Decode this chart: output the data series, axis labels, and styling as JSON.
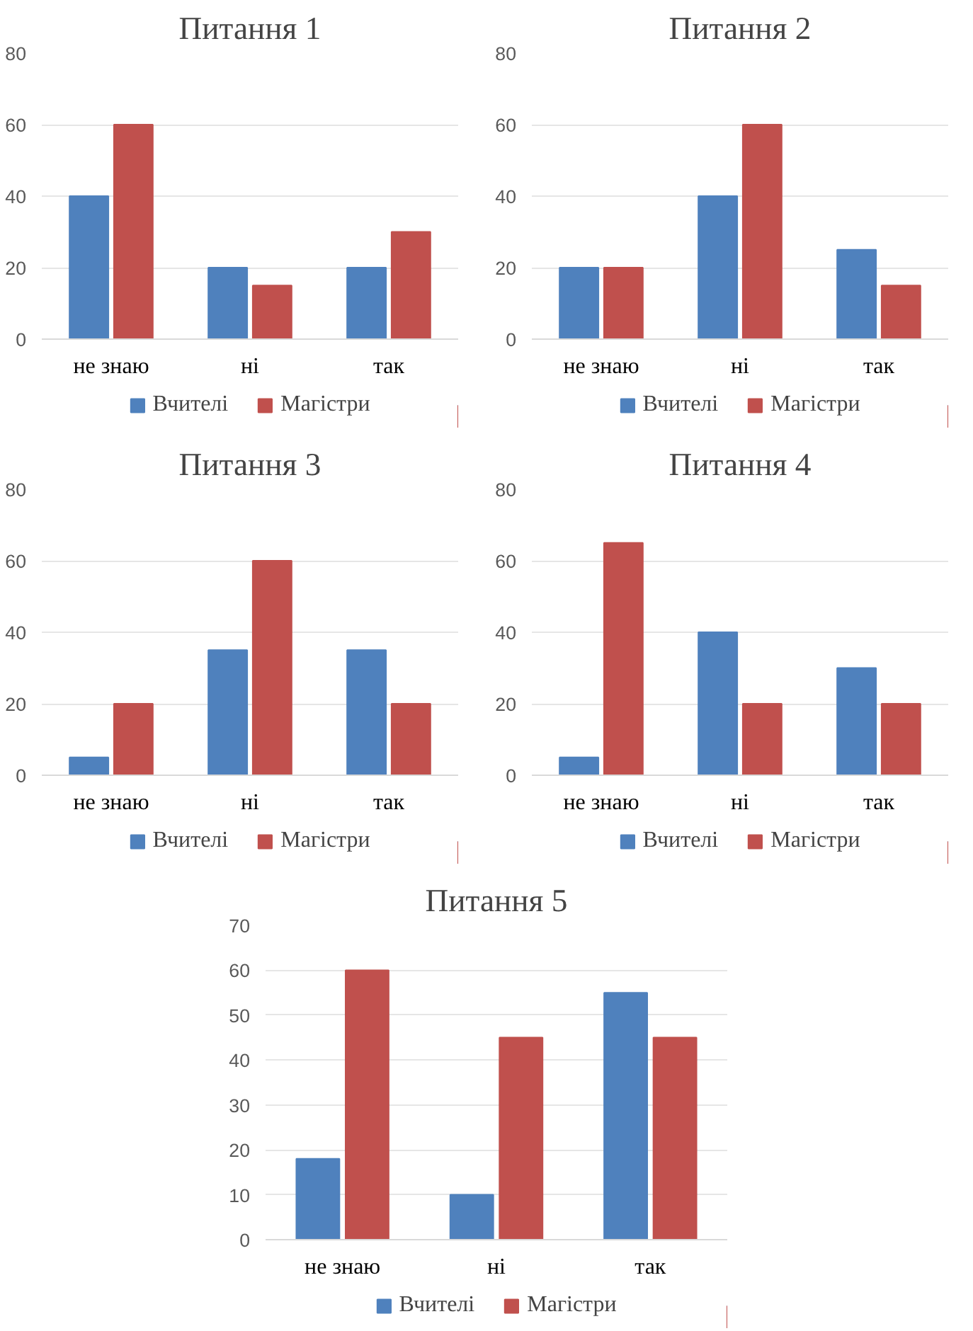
{
  "chart_data": [
    {
      "type": "bar",
      "title": "Питання 1",
      "categories": [
        "не знаю",
        "ні",
        "так"
      ],
      "ylim": [
        0,
        80
      ],
      "yticks": [
        0,
        20,
        40,
        60,
        80
      ],
      "grid": "y",
      "legend": "bottom",
      "series": [
        {
          "name": "Вчителі",
          "color": "#4f81bd",
          "values": [
            40,
            20,
            20
          ]
        },
        {
          "name": "Магістри",
          "color": "#c0504d",
          "values": [
            60,
            15,
            30
          ]
        }
      ]
    },
    {
      "type": "bar",
      "title": "Питання 2",
      "categories": [
        "не знаю",
        "ні",
        "так"
      ],
      "ylim": [
        0,
        80
      ],
      "yticks": [
        0,
        20,
        40,
        60,
        80
      ],
      "grid": "y",
      "legend": "bottom",
      "series": [
        {
          "name": "Вчителі",
          "color": "#4f81bd",
          "values": [
            20,
            40,
            25
          ]
        },
        {
          "name": "Магістри",
          "color": "#c0504d",
          "values": [
            20,
            60,
            15
          ]
        }
      ]
    },
    {
      "type": "bar",
      "title": "Питання 3",
      "categories": [
        "не знаю",
        "ні",
        "так"
      ],
      "ylim": [
        0,
        80
      ],
      "yticks": [
        0,
        20,
        40,
        60,
        80
      ],
      "grid": "y",
      "legend": "bottom",
      "series": [
        {
          "name": "Вчителі",
          "color": "#4f81bd",
          "values": [
            5,
            35,
            35
          ]
        },
        {
          "name": "Магістри",
          "color": "#c0504d",
          "values": [
            20,
            60,
            20
          ]
        }
      ]
    },
    {
      "type": "bar",
      "title": "Питання 4",
      "categories": [
        "не знаю",
        "ні",
        "так"
      ],
      "ylim": [
        0,
        80
      ],
      "yticks": [
        0,
        20,
        40,
        60,
        80
      ],
      "grid": "y",
      "legend": "bottom",
      "series": [
        {
          "name": "Вчителі",
          "color": "#4f81bd",
          "values": [
            5,
            40,
            30
          ]
        },
        {
          "name": "Магістри",
          "color": "#c0504d",
          "values": [
            65,
            20,
            20
          ]
        }
      ]
    },
    {
      "type": "bar",
      "title": "Питання 5",
      "categories": [
        "не знаю",
        "ні",
        "так"
      ],
      "ylim": [
        0,
        70
      ],
      "yticks": [
        0,
        10,
        20,
        30,
        40,
        50,
        60,
        70
      ],
      "grid": "y",
      "legend": "bottom",
      "series": [
        {
          "name": "Вчителі",
          "color": "#4f81bd",
          "values": [
            18,
            10,
            55
          ]
        },
        {
          "name": "Магістри",
          "color": "#c0504d",
          "values": [
            60,
            45,
            45
          ]
        }
      ]
    }
  ]
}
